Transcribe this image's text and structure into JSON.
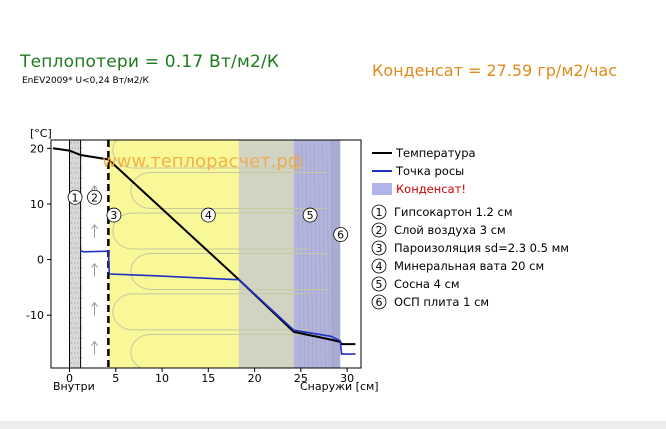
{
  "header": {
    "heat_loss": "Теплопотери = 0.17 Вт/м2/К",
    "heat_norm": "EnEV2009* U<0,24 Вт/м2/К",
    "condensate": "Конденсат = 27.59 гр/м2/час"
  },
  "colors": {
    "heat_loss": "#1f7a1f",
    "condensate": "#e08a1a",
    "temperature_line": "#000000",
    "dew_line": "#2030c0",
    "condensate_fill": "#b0b4e8",
    "gypsum": "#d8d8d8",
    "insulation": "#f8f898",
    "pine": "#b4b4cc"
  },
  "chart_data": {
    "type": "line",
    "ylabel": "[°C]",
    "xlabel": "Снаружи [см]",
    "x_left_label": "Внутри",
    "watermark": "www.теплорасчет.рф",
    "xlim": [
      -2,
      31.5
    ],
    "ylim": [
      -19.5,
      21.5
    ],
    "x_ticks": [
      0,
      5,
      10,
      15,
      20,
      25,
      30
    ],
    "y_ticks": [
      20,
      10,
      0,
      -10
    ],
    "layers": [
      {
        "num": "1",
        "name": "Гипсокартон 1.2 см",
        "x0": 0,
        "x1": 1.2,
        "label_x": 0.6,
        "label_y": 11.2
      },
      {
        "num": "2",
        "name": "Слой воздуха 3 см",
        "x0": 1.2,
        "x1": 4.2,
        "label_x": 2.7,
        "label_y": 11.2
      },
      {
        "num": "3",
        "name": "Пароизоляция sd=2.3 0.5 мм",
        "x0": 4.2,
        "x1": 4.25,
        "label_x": 4.8,
        "label_y": 8.0
      },
      {
        "num": "4",
        "name": "Минеральная вата 20 см",
        "x0": 4.25,
        "x1": 24.25,
        "label_x": 15.0,
        "label_y": 8.0
      },
      {
        "num": "5",
        "name": "Сосна 4 см",
        "x0": 24.25,
        "x1": 28.25,
        "label_x": 26.0,
        "label_y": 8.0
      },
      {
        "num": "6",
        "name": "ОСП плита 1 см",
        "x0": 28.25,
        "x1": 29.25,
        "label_x": 29.3,
        "label_y": 4.5
      }
    ],
    "condensate_zone": {
      "x0": 18.3,
      "x1": 29.25
    },
    "series": [
      {
        "name": "Температура",
        "x": [
          -1.8,
          0,
          1.2,
          4.2,
          18.3,
          24.25,
          28.25,
          29.25,
          29.4,
          30.9
        ],
        "y": [
          20,
          19.6,
          18.8,
          18.0,
          -3.6,
          -13.0,
          -14.4,
          -14.8,
          -15.2,
          -15.2
        ]
      },
      {
        "name": "Точка росы",
        "x": [
          1.2,
          1.5,
          4.2,
          4.3,
          9.0,
          17.8,
          18.3,
          24.25,
          28.25,
          29.25,
          29.4,
          30.9
        ],
        "y": [
          1.6,
          1.4,
          1.5,
          -2.6,
          -2.9,
          -3.6,
          -3.6,
          -12.7,
          -13.8,
          -14.6,
          -17.0,
          -17.0
        ]
      }
    ],
    "legend": [
      {
        "label": "Температура",
        "kind": "line",
        "color": "#000000"
      },
      {
        "label": "Точка росы",
        "kind": "line",
        "color": "#2030c0"
      },
      {
        "label": "Конденсат!",
        "kind": "box",
        "color": "#b0b4e8",
        "text_color": "#cc0000"
      }
    ],
    "grid": false
  }
}
